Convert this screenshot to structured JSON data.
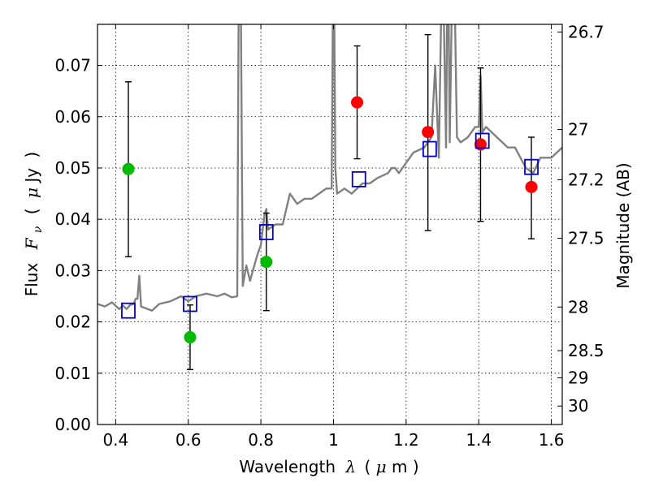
{
  "chart_data": {
    "type": "scatter",
    "xlabel": {
      "prefix": "Wavelength",
      "symbol": "λ",
      "open": "(",
      "unit_prefix": "μ",
      "unit": "m",
      "close": ")"
    },
    "ylabel": {
      "prefix": "Flux",
      "symbol_main": "F",
      "symbol_sub": "ν",
      "open": "(",
      "unit_prefix": "μ",
      "unit": "Jy",
      "close": ")"
    },
    "y2label": "Magnitude (AB)",
    "xlim": [
      0.35,
      1.63
    ],
    "ylim": [
      0.0,
      0.078
    ],
    "grid": true,
    "x_ticks": [
      {
        "value": 0.4,
        "label": "0.4"
      },
      {
        "value": 0.6,
        "label": "0.6"
      },
      {
        "value": 0.8,
        "label": "0.8"
      },
      {
        "value": 1.0,
        "label": "1"
      },
      {
        "value": 1.2,
        "label": "1.2"
      },
      {
        "value": 1.4,
        "label": "1.4"
      },
      {
        "value": 1.6,
        "label": "1.6"
      }
    ],
    "y_ticks": [
      {
        "value": 0.0,
        "label": "0.00"
      },
      {
        "value": 0.01,
        "label": "0.01"
      },
      {
        "value": 0.02,
        "label": "0.02"
      },
      {
        "value": 0.03,
        "label": "0.03"
      },
      {
        "value": 0.04,
        "label": "0.04"
      },
      {
        "value": 0.05,
        "label": "0.05"
      },
      {
        "value": 0.06,
        "label": "0.06"
      },
      {
        "value": 0.07,
        "label": "0.07"
      }
    ],
    "y2_ticks": [
      {
        "flux": 0.0765,
        "label": "26.7"
      },
      {
        "flux": 0.0575,
        "label": "27"
      },
      {
        "flux": 0.0477,
        "label": "27.2"
      },
      {
        "flux": 0.0363,
        "label": "27.5"
      },
      {
        "flux": 0.0229,
        "label": "28"
      },
      {
        "flux": 0.0144,
        "label": "28.5"
      },
      {
        "flux": 0.0091,
        "label": "29"
      },
      {
        "flux": 0.0036,
        "label": "30"
      }
    ],
    "colors": {
      "spectrum": "#808080",
      "detections": "#ff0000",
      "upper_limits": "#00bb00",
      "model_points": "#0000cc",
      "error_bars": "#000000"
    },
    "spectrum": {
      "x": [
        0.35,
        0.37,
        0.39,
        0.41,
        0.42,
        0.43,
        0.44,
        0.45,
        0.455,
        0.46,
        0.465,
        0.47,
        0.5,
        0.52,
        0.55,
        0.58,
        0.6,
        0.62,
        0.65,
        0.68,
        0.7,
        0.72,
        0.735,
        0.74,
        0.745,
        0.75,
        0.76,
        0.77,
        0.79,
        0.8,
        0.81,
        0.815,
        0.82,
        0.84,
        0.86,
        0.87,
        0.88,
        0.9,
        0.92,
        0.94,
        0.96,
        0.98,
        0.995,
        1.0,
        1.005,
        1.01,
        1.03,
        1.05,
        1.08,
        1.1,
        1.12,
        1.15,
        1.16,
        1.17,
        1.18,
        1.2,
        1.22,
        1.25,
        1.27,
        1.28,
        1.29,
        1.3,
        1.31,
        1.315,
        1.32,
        1.33,
        1.34,
        1.35,
        1.37,
        1.39,
        1.4,
        1.405,
        1.41,
        1.42,
        1.45,
        1.48,
        1.5,
        1.53,
        1.55,
        1.57,
        1.6,
        1.63
      ],
      "y": [
        0.0235,
        0.023,
        0.0238,
        0.0225,
        0.0232,
        0.0225,
        0.0233,
        0.0235,
        0.0245,
        0.0245,
        0.029,
        0.023,
        0.0222,
        0.0235,
        0.024,
        0.025,
        0.024,
        0.025,
        0.0255,
        0.025,
        0.0255,
        0.0248,
        0.025,
        0.1,
        0.08,
        0.027,
        0.031,
        0.028,
        0.033,
        0.035,
        0.041,
        0.042,
        0.038,
        0.039,
        0.039,
        0.042,
        0.045,
        0.043,
        0.044,
        0.044,
        0.045,
        0.046,
        0.046,
        0.1,
        0.05,
        0.045,
        0.046,
        0.045,
        0.047,
        0.047,
        0.048,
        0.049,
        0.05,
        0.05,
        0.049,
        0.051,
        0.053,
        0.054,
        0.056,
        0.07,
        0.052,
        0.095,
        0.054,
        0.1,
        0.055,
        0.1,
        0.056,
        0.055,
        0.056,
        0.058,
        0.058,
        0.068,
        0.057,
        0.058,
        0.056,
        0.054,
        0.054,
        0.05,
        0.049,
        0.052,
        0.052,
        0.054
      ]
    },
    "series": [
      {
        "name": "",
        "marker": "circle",
        "color": "#00bb00",
        "x": [
          0.435,
          0.605,
          0.815
        ],
        "y": [
          0.0498,
          0.017,
          0.0317
        ],
        "yerr_low": [
          0.0327,
          0.0107,
          0.0222
        ],
        "yerr_high": [
          0.0668,
          0.0233,
          0.0412
        ]
      },
      {
        "name": "",
        "marker": "circle",
        "color": "#ff0000",
        "x": [
          1.065,
          1.26,
          1.405,
          1.545
        ],
        "y": [
          0.0628,
          0.057,
          0.0546,
          0.0463
        ],
        "yerr_low": [
          0.0518,
          0.0378,
          0.0396,
          0.0362
        ],
        "yerr_high": [
          0.0738,
          0.076,
          0.0695,
          0.056
        ]
      },
      {
        "name": "",
        "marker": "open-square",
        "color": "#0000cc",
        "x": [
          0.435,
          0.605,
          0.815,
          1.07,
          1.265,
          1.41,
          1.545
        ],
        "y": [
          0.0222,
          0.0235,
          0.0375,
          0.0478,
          0.0537,
          0.0553,
          0.0502
        ]
      }
    ]
  }
}
